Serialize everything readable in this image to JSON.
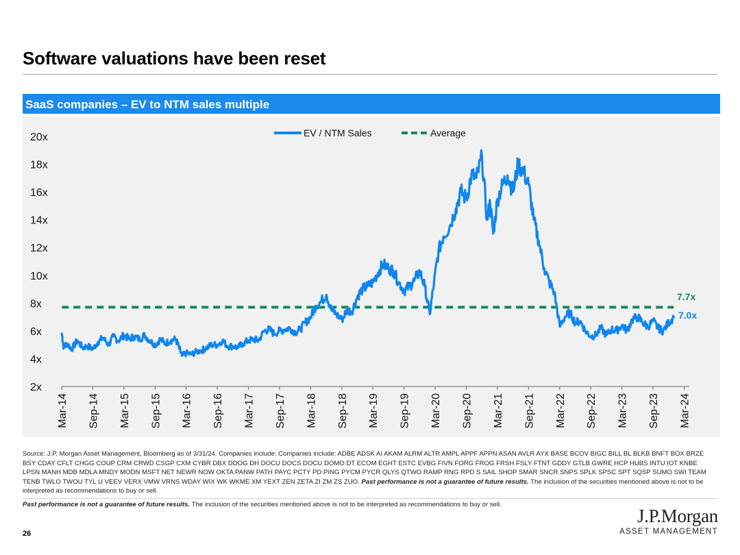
{
  "page": {
    "title": "Software valuations have been reset",
    "page_number": "26"
  },
  "chart_header": "SaaS companies – EV to NTM sales multiple",
  "colors": {
    "series": "#0f86ee",
    "average": "#12895a",
    "header_bg": "#1b8aea",
    "panel_bg": "#f1f1f1"
  },
  "chart_data": {
    "type": "line",
    "title": "SaaS companies – EV to NTM sales multiple",
    "xlabel": "",
    "ylabel": "",
    "ylim": [
      2,
      20
    ],
    "ytick_values": [
      2,
      4,
      6,
      8,
      10,
      12,
      14,
      16,
      18,
      20
    ],
    "ytick_labels": [
      "2x",
      "4x",
      "6x",
      "8x",
      "10x",
      "12x",
      "14x",
      "16x",
      "18x",
      "20x"
    ],
    "xlim": [
      2014.167,
      2024.25
    ],
    "xtick_values": [
      2014.167,
      2014.667,
      2015.167,
      2015.667,
      2016.167,
      2016.667,
      2017.167,
      2017.667,
      2018.167,
      2018.667,
      2019.167,
      2019.667,
      2020.167,
      2020.667,
      2021.167,
      2021.667,
      2022.167,
      2022.667,
      2023.167,
      2023.667,
      2024.167
    ],
    "xtick_labels": [
      "Mar-14",
      "Sep-14",
      "Mar-15",
      "Sep-15",
      "Mar-16",
      "Sep-16",
      "Mar-17",
      "Sep-17",
      "Mar-18",
      "Sep-18",
      "Mar-19",
      "Sep-19",
      "Mar-20",
      "Sep-20",
      "Mar-21",
      "Sep-21",
      "Mar-22",
      "Sep-22",
      "Mar-23",
      "Sep-23",
      "Mar-24"
    ],
    "legend": {
      "position": "top-center"
    },
    "grid": false,
    "series": [
      {
        "name": "EV / NTM Sales",
        "style": "solid",
        "end_label": "7.0x",
        "x": [
          2014.17,
          2014.2,
          2014.25,
          2014.33,
          2014.42,
          2014.5,
          2014.58,
          2014.67,
          2014.75,
          2014.83,
          2014.92,
          2015.0,
          2015.08,
          2015.17,
          2015.25,
          2015.33,
          2015.42,
          2015.5,
          2015.58,
          2015.67,
          2015.75,
          2015.83,
          2015.92,
          2016.0,
          2016.05,
          2016.1,
          2016.17,
          2016.25,
          2016.33,
          2016.42,
          2016.5,
          2016.58,
          2016.67,
          2016.75,
          2016.83,
          2016.92,
          2017.0,
          2017.08,
          2017.17,
          2017.25,
          2017.33,
          2017.42,
          2017.5,
          2017.58,
          2017.67,
          2017.75,
          2017.83,
          2017.92,
          2018.0,
          2018.08,
          2018.17,
          2018.25,
          2018.33,
          2018.42,
          2018.5,
          2018.58,
          2018.67,
          2018.75,
          2018.83,
          2018.92,
          2019.0,
          2019.08,
          2019.17,
          2019.25,
          2019.33,
          2019.42,
          2019.5,
          2019.58,
          2019.67,
          2019.75,
          2019.83,
          2019.92,
          2020.0,
          2020.08,
          2020.15,
          2020.22,
          2020.3,
          2020.4,
          2020.5,
          2020.58,
          2020.67,
          2020.75,
          2020.83,
          2020.92,
          2021.0,
          2021.05,
          2021.1,
          2021.17,
          2021.25,
          2021.33,
          2021.42,
          2021.5,
          2021.58,
          2021.67,
          2021.75,
          2021.83,
          2021.92,
          2022.0,
          2022.08,
          2022.17,
          2022.25,
          2022.33,
          2022.42,
          2022.5,
          2022.58,
          2022.67,
          2022.75,
          2022.83,
          2022.92,
          2023.0,
          2023.08,
          2023.17,
          2023.25,
          2023.33,
          2023.42,
          2023.5,
          2023.58,
          2023.67,
          2023.75,
          2023.83,
          2023.92,
          2024.0
        ],
        "values": [
          5.8,
          4.8,
          5.1,
          4.7,
          5.3,
          4.8,
          4.9,
          4.7,
          5.2,
          5.5,
          5.0,
          5.6,
          5.3,
          5.7,
          5.4,
          5.6,
          5.4,
          5.7,
          5.3,
          5.0,
          5.4,
          5.1,
          5.3,
          5.4,
          4.8,
          4.2,
          4.4,
          4.3,
          4.5,
          4.6,
          4.8,
          5.0,
          5.0,
          5.3,
          4.9,
          4.9,
          4.8,
          5.1,
          5.3,
          5.4,
          5.3,
          6.0,
          6.1,
          5.8,
          6.0,
          6.1,
          6.2,
          5.9,
          6.1,
          6.6,
          7.0,
          7.8,
          8.1,
          8.6,
          7.5,
          7.2,
          6.8,
          7.5,
          7.4,
          8.5,
          9.0,
          9.2,
          9.5,
          10.2,
          10.8,
          10.5,
          10.3,
          9.5,
          8.9,
          9.2,
          9.6,
          10.3,
          9.2,
          7.2,
          9.5,
          11.7,
          12.8,
          13.5,
          14.8,
          16.0,
          15.5,
          17.2,
          17.0,
          18.5,
          14.0,
          15.2,
          13.0,
          15.5,
          16.5,
          17.2,
          16.0,
          18.0,
          17.5,
          16.5,
          14.0,
          12.5,
          10.5,
          9.5,
          8.8,
          6.3,
          7.0,
          7.3,
          6.6,
          6.7,
          6.0,
          5.6,
          5.7,
          6.2,
          5.7,
          6.1,
          6.0,
          6.4,
          6.0,
          6.8,
          7.0,
          6.6,
          6.3,
          6.7,
          6.2,
          6.0,
          6.6,
          7.0
        ]
      },
      {
        "name": "Average",
        "style": "dashed",
        "end_label": "7.7x",
        "x": [
          2014.17,
          2024.0
        ],
        "values": [
          7.7,
          7.7
        ]
      }
    ]
  },
  "footnotes": {
    "source_text": "Source: J.P. Morgan Asset Management, Bloomberg as of 3/31/24. Companies include: Companies include: ADBE ADSK AI AKAM ALRM ALTR AMPL APPF APPN ASAN AVLR AYX BASE BCOV BIGC BILL BL BLKB BNFT BOX BRZE BSY CDAY CFLT CHGG COUP CRM CRWD CSGP CXM CYBR DBX DDOG DH DOCU DOCS DOCU DOMO DT ECOM EGHT ESTC EVBG FIVN FORG FROG FRSH FSLY FTNT GDDY GTLB GWRE HCP HUBS INTU IOT KNBE LPSN MANH MDB MDLA MNDY MODN MSFT NET NEWR NOW OKTA PANW PATH PAYC PCTY PD PING PYCM PYCR QLYS QTWO RAMP RNG RPD S SAIL SHOP SMAR SNCR SNPS SPLK SPSC SPT SQSP SUMO SWI TEAM TENB TWLO TWOU TYL U VEEV VERX VMW VRNS WDAY WIX WK WKME XM YEXT ZEN ZETA ZI ZM ZS ZUO.",
    "source_emphasis": "Past performance is not a guarantee of future results.",
    "source_tail": "The inclusion of the securities mentioned above is not to be interpreted as recommendations to buy or sell.",
    "disclaimer_emphasis": "Past performance is not a guarantee of future results.",
    "disclaimer_tail": "The inclusion of the securities mentioned above is not to be interpreted as recommendations to buy or sell."
  },
  "logo": {
    "name": "J.P.Morgan",
    "subtitle": "ASSET MANAGEMENT"
  }
}
